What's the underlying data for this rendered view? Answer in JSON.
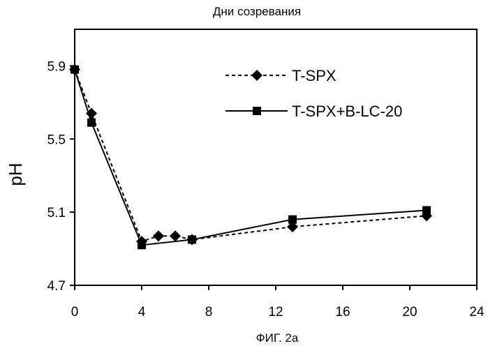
{
  "chart_data": {
    "type": "line",
    "title": "Дни созревания",
    "xlabel": "",
    "ylabel": "pH",
    "caption": "ФИГ. 2а",
    "xlim": [
      0,
      24
    ],
    "ylim": [
      4.7,
      6.1
    ],
    "xticks": [
      "0",
      "4",
      "8",
      "12",
      "16",
      "20",
      "24"
    ],
    "yticks": [
      "4.7",
      "5.1",
      "5.5",
      "5.9"
    ],
    "grid": false,
    "legend_position": "top-right",
    "series": [
      {
        "name": "T-SPX",
        "line_style": "dashed",
        "marker": "diamond",
        "color": "#000000",
        "x": [
          0,
          1,
          4,
          5,
          6,
          7,
          13,
          21
        ],
        "y": [
          5.88,
          5.64,
          4.94,
          4.97,
          4.97,
          4.95,
          5.02,
          5.08
        ]
      },
      {
        "name": "T-SPX+B-LC-20",
        "line_style": "solid",
        "marker": "square",
        "color": "#000000",
        "x": [
          0,
          1,
          4,
          7,
          13,
          21
        ],
        "y": [
          5.88,
          5.59,
          4.92,
          4.95,
          5.06,
          5.11
        ]
      }
    ]
  }
}
